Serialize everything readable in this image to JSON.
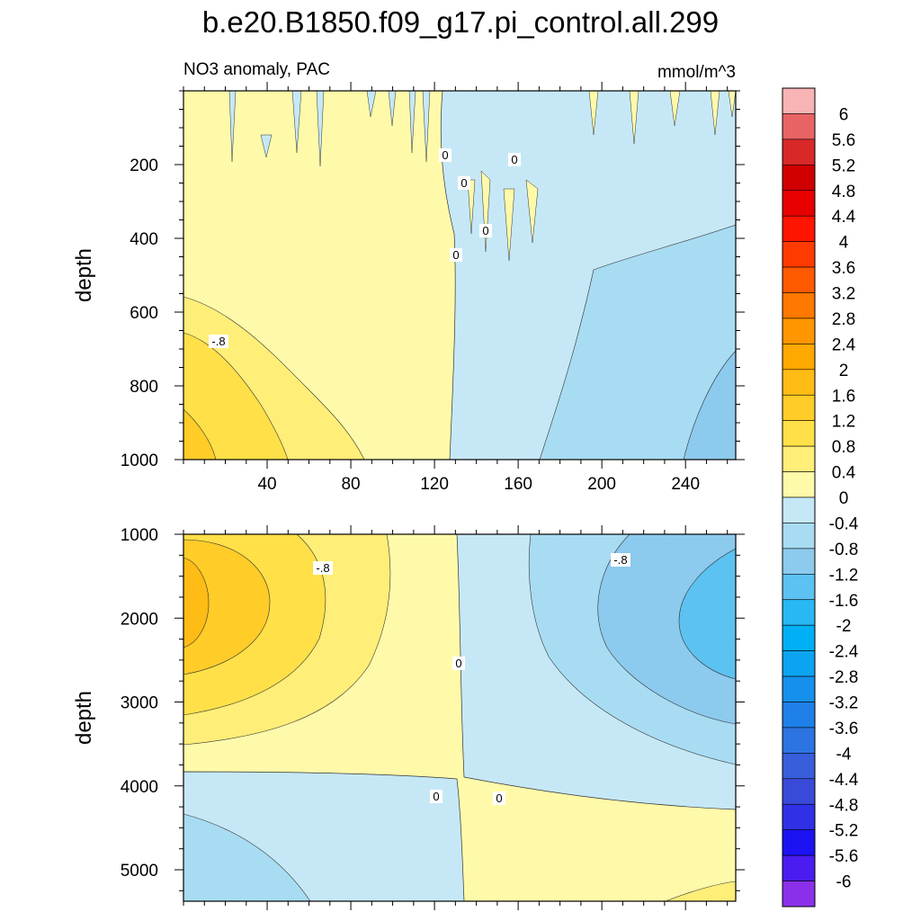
{
  "chart_data": {
    "type": "heatmap",
    "title": "b.e20.B1850.f09_g17.pi_control.all.299",
    "subtitle_left": "NO3 anomaly, PAC",
    "subtitle_right": "mmol/m^3",
    "colorbar": {
      "levels": [
        "6",
        "5.6",
        "5.2",
        "4.8",
        "4.4",
        "4",
        "3.6",
        "3.2",
        "2.8",
        "2.4",
        "2",
        "1.6",
        "1.2",
        "0.8",
        "0.4",
        "0",
        "-0.4",
        "-0.8",
        "-1.2",
        "-1.6",
        "-2",
        "-2.4",
        "-2.8",
        "-3.2",
        "-3.6",
        "-4",
        "-4.4",
        "-4.8",
        "-5.2",
        "-5.6",
        "-6"
      ],
      "colors": [
        "#f8b4b4",
        "#e86464",
        "#d82828",
        "#d00000",
        "#e80000",
        "#ff1400",
        "#ff3a00",
        "#ff5a00",
        "#ff7800",
        "#ff9600",
        "#ffa800",
        "#ffbc14",
        "#ffcc28",
        "#ffe048",
        "#ffee78",
        "#fffaaa",
        "#c6e8f6",
        "#a8dcf2",
        "#8ccaee",
        "#5cc2f2",
        "#28b8f4",
        "#00b0f4",
        "#0ca4f0",
        "#1690ec",
        "#1e80e8",
        "#2c74e2",
        "#385edc",
        "#3a4ad8",
        "#3030e6",
        "#1c12f2",
        "#4a1cf0",
        "#8a30ea"
      ]
    },
    "panels": [
      {
        "ylabel": "depth",
        "xticks": [
          "40",
          "80",
          "120",
          "160",
          "200",
          "240"
        ],
        "yticks": [
          "200",
          "400",
          "600",
          "800",
          "1000"
        ],
        "xlim": [
          0,
          264
        ],
        "ylim": [
          1000,
          0
        ],
        "contour_labels": [
          "0",
          "0",
          "0",
          "0",
          "0",
          "-.8"
        ]
      },
      {
        "ylabel": "depth",
        "yticks": [
          "1000",
          "2000",
          "3000",
          "4000",
          "5000"
        ],
        "xlim": [
          0,
          264
        ],
        "ylim": [
          5375,
          1000
        ],
        "contour_labels": [
          "-.8",
          "-.8",
          "0",
          "0",
          "0"
        ]
      }
    ]
  }
}
